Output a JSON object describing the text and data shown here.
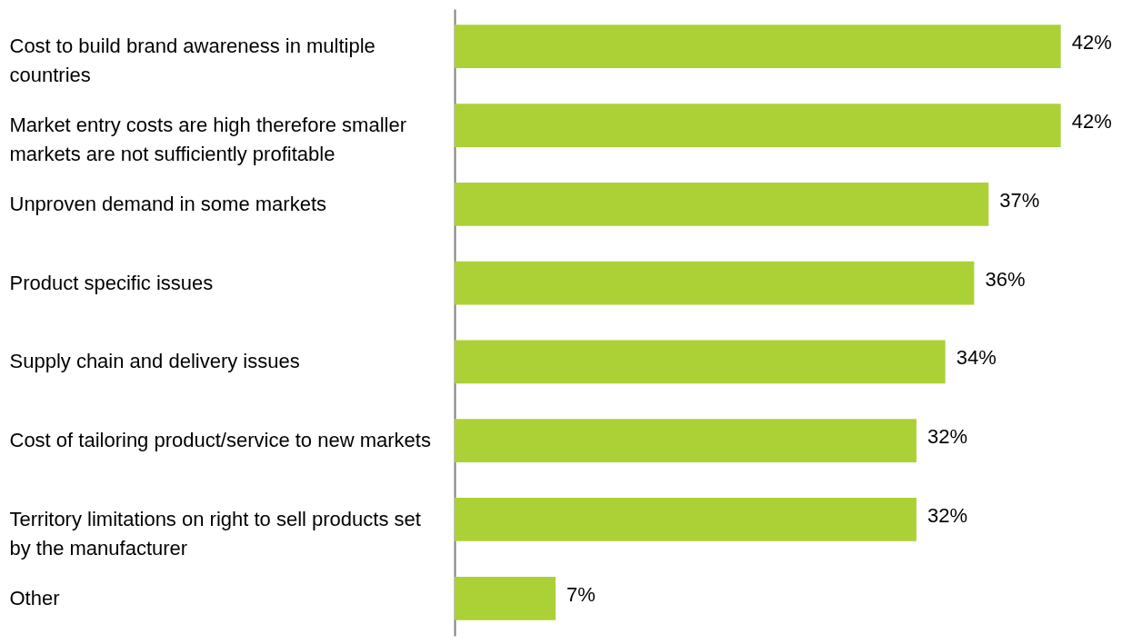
{
  "chart_data": {
    "type": "bar",
    "orientation": "horizontal",
    "categories": [
      "Cost to build brand awareness in multiple countries",
      "Market entry costs are high therefore smaller markets are not sufficiently profitable",
      "Unproven demand in some markets",
      "Product specific issues",
      "Supply chain and delivery issues",
      "Cost of tailoring product/service to new markets",
      "Territory limitations on right to sell products set by the manufacturer",
      "Other"
    ],
    "values": [
      42,
      42,
      37,
      36,
      34,
      32,
      32,
      7
    ],
    "value_labels": [
      "42%",
      "42%",
      "37%",
      "36%",
      "34%",
      "32%",
      "32%",
      "7%"
    ],
    "color": "#acd136"
  }
}
